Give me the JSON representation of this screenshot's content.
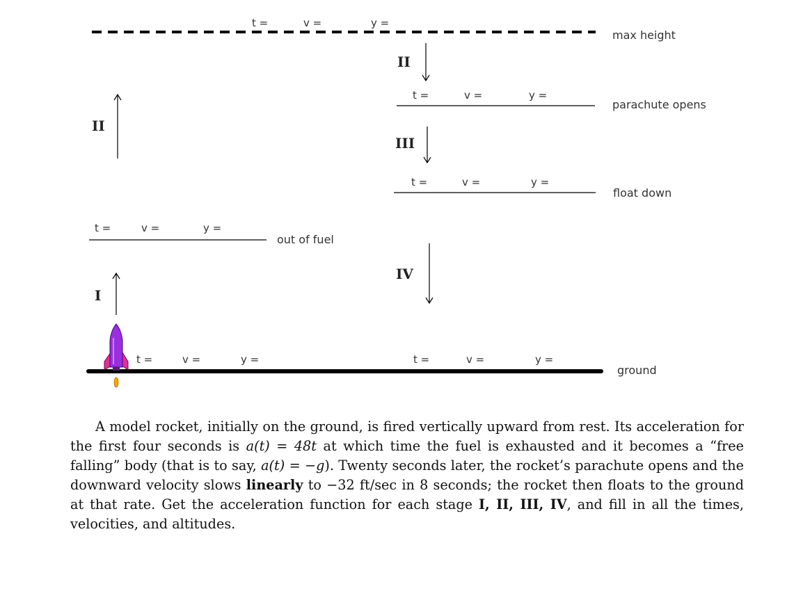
{
  "labels": {
    "max_height": "max height",
    "parachute_opens": "parachute opens",
    "float_down": "float down",
    "out_of_fuel": "out of fuel",
    "ground": "ground"
  },
  "fields": {
    "t": "t =",
    "v": "v =",
    "y": "y ="
  },
  "stages": {
    "I": "I",
    "II": "II",
    "III": "III",
    "IV": "IV"
  },
  "problem": {
    "intro": "A model rocket, initially on the ground, is fired vertically upward from rest. Its acceleration for the first four seconds is",
    "accel_expr": "a(t) = 48t",
    "mid1": "at which time the fuel is exhausted and it becomes a “free falling” body (that is to say,",
    "freefall_expr": "a(t) = −g",
    "mid2": "). Twenty seconds later, the rocket’s parachute opens and the downward velocity slows",
    "linearly": "linearly",
    "mid3": "to −32 ft/sec in 8 seconds; the rocket then floats to the ground at that rate. Get the acceleration function for each stage",
    "stage_list": "I, II, III, IV",
    "end": ", and fill in all the times, velocities, and altitudes."
  }
}
